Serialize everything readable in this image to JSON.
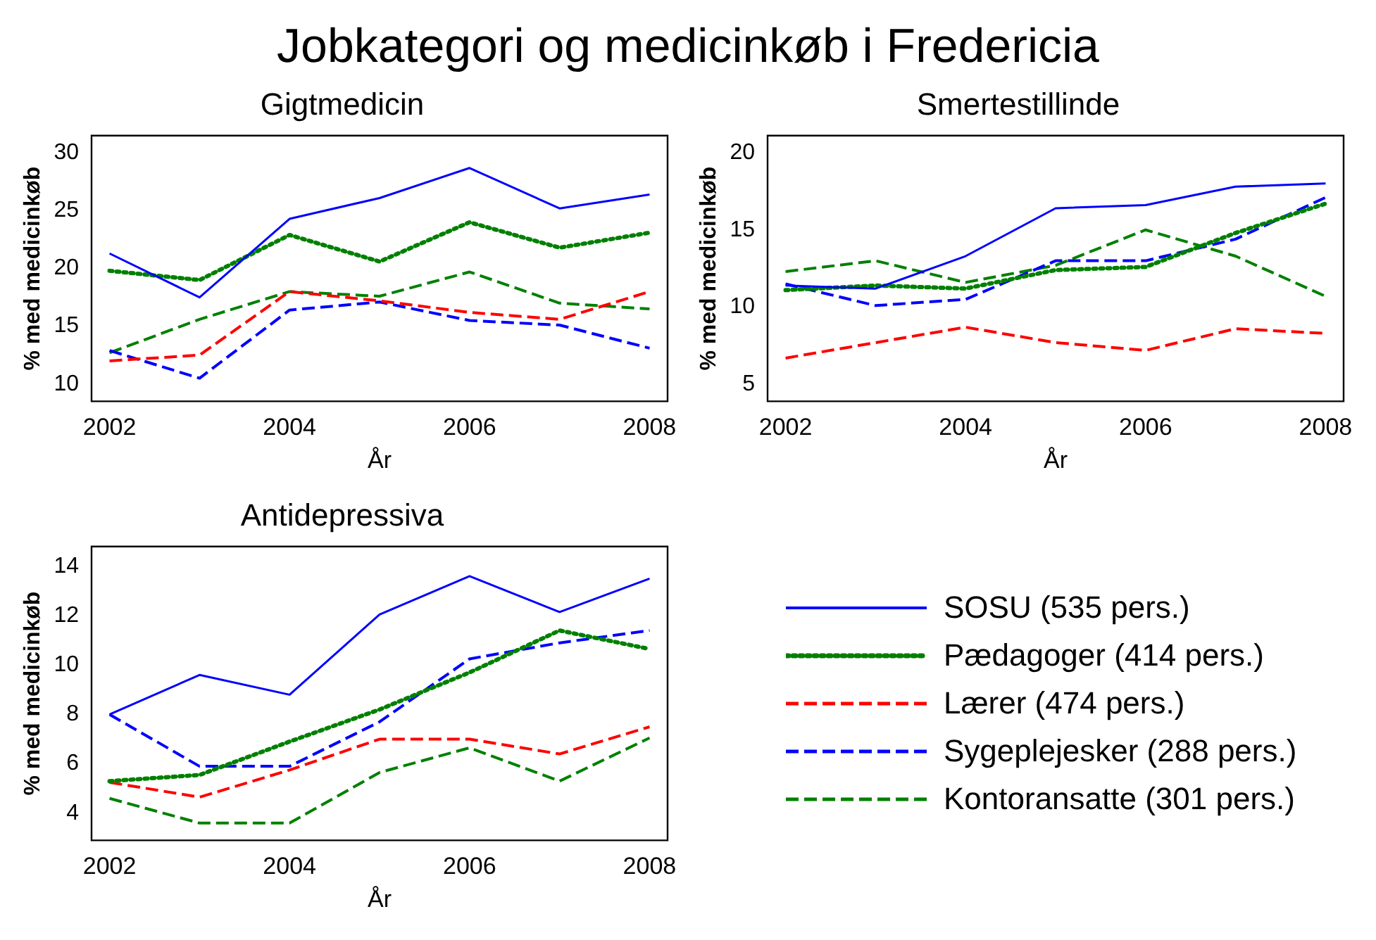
{
  "chart_data": [
    {
      "type": "line",
      "title": "Jobkategori og medicinkøb i Fredericia",
      "subtitle": "Gigtmedicin",
      "xlabel": "År",
      "ylabel": "% med medicinkøb",
      "x": [
        2002,
        2003,
        2004,
        2005,
        2006,
        2007,
        2008
      ],
      "xlim": [
        2001.8,
        2008.2
      ],
      "xticks": [
        2002,
        2004,
        2006,
        2008
      ],
      "ylim": [
        8.5,
        31.5
      ],
      "yticks": [
        10,
        15,
        20,
        25,
        30
      ],
      "grid": false,
      "legend": false,
      "marker": "none",
      "series": [
        {
          "color": "#0000ff",
          "line_style": "solid",
          "values": [
            21.3,
            17.5,
            24.3,
            26.1,
            28.7,
            25.2,
            26.4
          ]
        },
        {
          "color": "#008000",
          "line_style": "dotted",
          "values": [
            19.8,
            19.0,
            22.9,
            20.6,
            24.0,
            21.8,
            23.1
          ]
        },
        {
          "color": "#ff0000",
          "line_style": "dashed",
          "values": [
            12.0,
            12.5,
            18.0,
            17.2,
            16.2,
            15.6,
            18.0
          ]
        },
        {
          "color": "#0000ff",
          "line_style": "dashed",
          "values": [
            12.9,
            10.5,
            16.4,
            17.1,
            15.5,
            15.1,
            13.1
          ]
        },
        {
          "color": "#008000",
          "line_style": "dashed",
          "values": [
            12.7,
            15.6,
            18.0,
            17.6,
            19.7,
            17.0,
            16.5
          ]
        }
      ]
    },
    {
      "type": "line",
      "title": "Smertestillinde",
      "xlabel": "År",
      "ylabel": "% med medicinkøb",
      "x": [
        2002,
        2003,
        2004,
        2005,
        2006,
        2007,
        2008
      ],
      "xlim": [
        2001.8,
        2008.2
      ],
      "xticks": [
        2002,
        2004,
        2006,
        2008
      ],
      "ylim": [
        3.9,
        21.1
      ],
      "yticks": [
        5,
        10,
        15,
        20
      ],
      "grid": false,
      "legend": false,
      "marker": "none",
      "series": [
        {
          "color": "#0000ff",
          "line_style": "solid",
          "values": [
            11.4,
            11.2,
            13.3,
            16.4,
            16.6,
            17.8,
            18.0
          ]
        },
        {
          "color": "#008000",
          "line_style": "dotted",
          "values": [
            11.1,
            11.4,
            11.2,
            12.4,
            12.6,
            14.8,
            16.7
          ]
        },
        {
          "color": "#ff0000",
          "line_style": "dashed",
          "values": [
            6.7,
            7.7,
            8.7,
            7.7,
            7.2,
            8.6,
            8.3
          ]
        },
        {
          "color": "#0000ff",
          "line_style": "dashed",
          "values": [
            11.5,
            10.1,
            10.5,
            13.0,
            13.0,
            14.4,
            17.1
          ]
        },
        {
          "color": "#008000",
          "line_style": "dashed",
          "values": [
            12.3,
            13.0,
            11.6,
            12.7,
            15.0,
            13.3,
            10.7
          ]
        }
      ]
    },
    {
      "type": "line",
      "title": "Antidepressiva",
      "xlabel": "År",
      "ylabel": "% med medicinkøb",
      "x": [
        2002,
        2003,
        2004,
        2005,
        2006,
        2007,
        2008
      ],
      "xlim": [
        2001.8,
        2008.2
      ],
      "xticks": [
        2002,
        2004,
        2006,
        2008
      ],
      "ylim": [
        2.9,
        14.8
      ],
      "yticks": [
        4,
        6,
        8,
        10,
        12,
        14
      ],
      "grid": false,
      "legend": "right",
      "marker": "none",
      "series": [
        {
          "name": "SOSU (535 pers.)",
          "color": "#0000ff",
          "line_style": "solid",
          "values": [
            8.0,
            9.6,
            8.8,
            12.05,
            13.6,
            12.15,
            13.5
          ]
        },
        {
          "name": "Pædagoger (414 pers.)",
          "color": "#008000",
          "line_style": "dotted",
          "values": [
            5.3,
            5.55,
            6.9,
            8.2,
            9.7,
            11.4,
            10.65
          ]
        },
        {
          "name": "Lærer (474 pers.)",
          "color": "#ff0000",
          "line_style": "dashed",
          "values": [
            5.25,
            4.65,
            5.75,
            7.0,
            7.0,
            6.4,
            7.5
          ]
        },
        {
          "name": "Sygeplejesker (288 pers.)",
          "color": "#0000ff",
          "line_style": "dashed",
          "values": [
            8.0,
            5.9,
            5.9,
            7.7,
            10.25,
            10.9,
            11.4
          ]
        },
        {
          "name": "Kontoransatte (301 pers.)",
          "color": "#008000",
          "line_style": "dashed",
          "values": [
            4.6,
            3.6,
            3.6,
            5.65,
            6.65,
            5.3,
            7.05
          ]
        }
      ]
    }
  ]
}
